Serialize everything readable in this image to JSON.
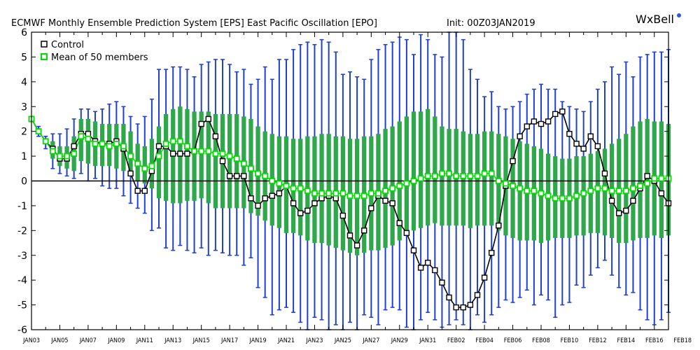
{
  "chart_data": {
    "type": "line",
    "title": "ECMWF Monthly Ensemble Prediction System [EPS] East Pacific Oscillation [EPO]",
    "init": "Init: 00Z03JAN2019",
    "brand": "WxBell",
    "xlabel": "",
    "ylabel": "",
    "ylim": [
      -6,
      6
    ],
    "yticks": [
      -6,
      -5,
      -4,
      -3,
      -2,
      -1,
      0,
      1,
      2,
      3,
      4,
      5,
      6
    ],
    "grid": false,
    "legend_position": "top-left",
    "x_tick_labels": [
      "JAN03",
      "JAN05",
      "JAN07",
      "JAN09",
      "JAN11",
      "JAN13",
      "JAN15",
      "JAN17",
      "JAN19",
      "JAN21",
      "JAN23",
      "JAN25",
      "JAN27",
      "JAN29",
      "JAN31",
      "FEB02",
      "FEB04",
      "FEB06",
      "FEB08",
      "FEB10",
      "FEB12",
      "FEB14",
      "FEB16",
      "FEB18"
    ],
    "time_steps_per_day": 2,
    "series": [
      {
        "name": "Control",
        "color": "#000000",
        "values": [
          2.5,
          2.0,
          1.6,
          1.3,
          0.9,
          0.9,
          1.4,
          1.9,
          1.9,
          1.6,
          1.5,
          1.5,
          1.6,
          1.3,
          0.3,
          -0.4,
          -0.4,
          0.4,
          1.4,
          1.4,
          1.1,
          1.1,
          1.1,
          1.2,
          2.3,
          2.5,
          1.8,
          0.8,
          0.2,
          0.2,
          0.2,
          -0.7,
          -1.0,
          -0.7,
          -0.6,
          -0.5,
          -0.2,
          -0.9,
          -1.3,
          -1.2,
          -0.9,
          -0.7,
          -0.6,
          -0.7,
          -1.4,
          -2.2,
          -2.6,
          -2.0,
          -1.1,
          -0.6,
          -0.8,
          -0.9,
          -1.7,
          -2.1,
          -2.8,
          -3.5,
          -3.3,
          -3.6,
          -4.1,
          -4.7,
          -5.1,
          -5.1,
          -5.0,
          -4.6,
          -3.9,
          -2.9,
          -1.8,
          -0.2,
          0.8,
          1.8,
          2.2,
          2.4,
          2.3,
          2.4,
          2.7,
          2.8,
          1.9,
          1.5,
          1.3,
          1.8,
          1.4,
          0.3,
          -0.8,
          -1.3,
          -1.2,
          -0.8,
          -0.3,
          0.2,
          0.0,
          -0.5,
          -0.9
        ]
      },
      {
        "name": "Mean of 50 members",
        "color": "#00dd00",
        "values": [
          2.5,
          2.0,
          1.6,
          1.2,
          1.0,
          1.0,
          1.1,
          1.8,
          1.7,
          1.5,
          1.5,
          1.4,
          1.5,
          1.4,
          1.0,
          0.7,
          0.5,
          0.6,
          1.0,
          1.5,
          1.6,
          1.6,
          1.4,
          1.2,
          1.2,
          1.2,
          1.1,
          1.1,
          1.0,
          0.9,
          0.7,
          0.5,
          0.3,
          0.2,
          0.0,
          -0.1,
          -0.2,
          -0.3,
          -0.3,
          -0.4,
          -0.5,
          -0.5,
          -0.5,
          -0.5,
          -0.5,
          -0.6,
          -0.6,
          -0.6,
          -0.5,
          -0.5,
          -0.4,
          -0.3,
          -0.2,
          -0.1,
          0.0,
          0.1,
          0.2,
          0.2,
          0.3,
          0.3,
          0.2,
          0.2,
          0.2,
          0.2,
          0.3,
          0.3,
          0.0,
          -0.1,
          -0.2,
          -0.3,
          -0.4,
          -0.4,
          -0.5,
          -0.6,
          -0.7,
          -0.7,
          -0.7,
          -0.6,
          -0.5,
          -0.4,
          -0.3,
          -0.3,
          -0.4,
          -0.4,
          -0.4,
          -0.3,
          -0.2,
          -0.1,
          0.1,
          0.1,
          0.1
        ]
      }
    ],
    "spread_band": {
      "name": "Ensemble spread (green bars)",
      "color": "#2ea84a",
      "lower": [
        2.4,
        1.9,
        1.5,
        0.9,
        0.6,
        0.5,
        0.4,
        0.8,
        0.7,
        0.6,
        0.6,
        0.6,
        0.5,
        0.4,
        0.2,
        0.0,
        -0.1,
        -0.3,
        -0.7,
        -0.8,
        -0.9,
        -0.9,
        -0.8,
        -0.8,
        -0.7,
        -0.9,
        -1.1,
        -1.1,
        -1.1,
        -1.1,
        -1.1,
        -1.3,
        -1.4,
        -1.6,
        -1.8,
        -1.9,
        -2.1,
        -2.1,
        -2.2,
        -2.4,
        -2.5,
        -2.5,
        -2.6,
        -2.7,
        -2.8,
        -2.9,
        -3.0,
        -2.9,
        -2.8,
        -2.8,
        -2.7,
        -2.6,
        -2.4,
        -2.2,
        -2.0,
        -1.9,
        -1.8,
        -1.7,
        -1.8,
        -1.8,
        -1.8,
        -1.8,
        -1.9,
        -1.8,
        -1.8,
        -1.8,
        -2.0,
        -2.2,
        -2.3,
        -2.4,
        -2.4,
        -2.4,
        -2.5,
        -2.4,
        -2.3,
        -2.3,
        -2.3,
        -2.2,
        -2.2,
        -2.1,
        -2.1,
        -2.2,
        -2.3,
        -2.5,
        -2.5,
        -2.4,
        -2.3,
        -2.3,
        -2.2,
        -2.3,
        -2.2
      ],
      "upper": [
        2.6,
        2.1,
        1.7,
        1.6,
        1.4,
        1.4,
        1.8,
        2.5,
        2.5,
        2.4,
        2.3,
        2.3,
        2.3,
        2.3,
        2.0,
        1.5,
        1.4,
        1.7,
        2.2,
        2.7,
        2.9,
        3.0,
        2.9,
        2.8,
        2.8,
        2.8,
        2.7,
        2.7,
        2.7,
        2.7,
        2.6,
        2.5,
        2.2,
        2.0,
        1.9,
        1.8,
        1.8,
        1.7,
        1.7,
        1.8,
        1.8,
        1.9,
        1.9,
        1.8,
        1.8,
        1.7,
        1.7,
        1.8,
        1.8,
        1.9,
        2.1,
        2.2,
        2.4,
        2.6,
        2.8,
        2.8,
        2.9,
        2.6,
        2.2,
        2.1,
        2.1,
        2.0,
        1.9,
        1.9,
        2.0,
        2.0,
        1.9,
        1.8,
        1.7,
        1.6,
        1.5,
        1.4,
        1.3,
        1.1,
        1.0,
        0.9,
        0.9,
        1.0,
        1.0,
        1.1,
        1.2,
        1.3,
        1.5,
        1.7,
        1.9,
        2.2,
        2.4,
        2.5,
        2.4,
        2.4,
        2.3
      ]
    },
    "whiskers": {
      "name": "Ensemble min/max (blue whiskers)",
      "color": "#1f3fd0",
      "lower": [
        2.4,
        1.8,
        1.3,
        0.5,
        0.3,
        0.2,
        0.1,
        0.3,
        0.0,
        0.1,
        -0.2,
        -0.3,
        -0.3,
        -0.6,
        -0.9,
        -1.1,
        -1.3,
        -2.0,
        -1.9,
        -2.7,
        -2.8,
        -2.6,
        -2.8,
        -2.9,
        -2.7,
        -3.0,
        -2.8,
        -2.9,
        -3.0,
        -3.0,
        -3.4,
        -3.1,
        -4.3,
        -4.7,
        -5.4,
        -5.2,
        -5.1,
        -5.3,
        -5.7,
        -6.0,
        -5.5,
        -5.6,
        -6.0,
        -5.8,
        -6.0,
        -5.7,
        -6.0,
        -5.4,
        -5.5,
        -5.8,
        -5.2,
        -5.1,
        -5.2,
        -5.9,
        -6.0,
        -5.6,
        -5.3,
        -5.6,
        -5.9,
        -5.8,
        -5.6,
        -5.8,
        -6.0,
        -5.4,
        -5.7,
        -5.4,
        -5.1,
        -4.8,
        -4.9,
        -4.7,
        -4.4,
        -5.0,
        -4.6,
        -4.8,
        -5.5,
        -5.0,
        -4.9,
        -4.2,
        -4.3,
        -3.8,
        -3.5,
        -3.2,
        -3.8,
        -4.3,
        -4.6,
        -4.5,
        -5.2,
        -5.6,
        -5.8,
        -5.6,
        -5.3
      ],
      "upper": [
        2.6,
        2.2,
        1.8,
        1.9,
        1.9,
        2.1,
        2.5,
        2.9,
        2.9,
        2.8,
        2.9,
        3.1,
        3.2,
        3.0,
        2.6,
        2.3,
        2.6,
        3.3,
        4.5,
        4.5,
        4.6,
        4.6,
        4.5,
        4.2,
        4.7,
        4.8,
        4.9,
        4.9,
        4.7,
        4.4,
        4.5,
        3.9,
        4.1,
        4.6,
        4.1,
        4.9,
        4.9,
        5.3,
        5.5,
        5.6,
        5.5,
        5.7,
        5.6,
        5.2,
        4.3,
        4.4,
        4.2,
        4.1,
        4.9,
        5.3,
        5.5,
        5.6,
        5.8,
        5.7,
        5.1,
        5.9,
        5.7,
        5.1,
        5.0,
        6.0,
        6.0,
        5.7,
        4.5,
        4.1,
        3.4,
        3.6,
        3.0,
        2.9,
        3.0,
        3.2,
        3.5,
        3.7,
        3.9,
        3.7,
        3.7,
        3.2,
        3.0,
        2.9,
        2.8,
        3.2,
        3.7,
        4.0,
        4.6,
        4.3,
        4.8,
        4.2,
        5.0,
        5.1,
        5.2,
        5.2,
        5.3
      ]
    }
  }
}
